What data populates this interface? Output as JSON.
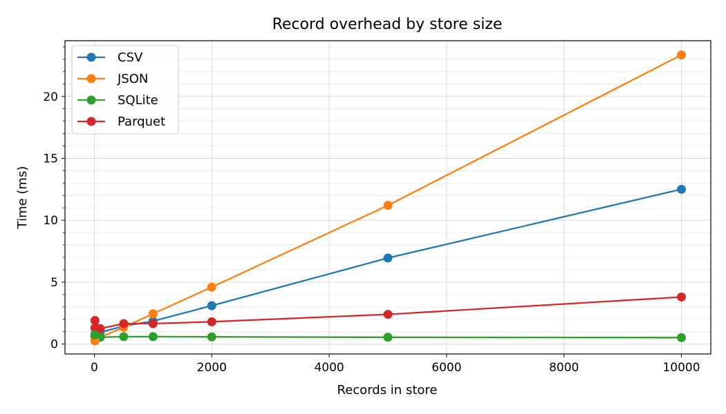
{
  "chart_data": {
    "type": "line",
    "title": "Record overhead by store size",
    "xlabel": "Records in store",
    "ylabel": "Time (ms)",
    "xlim": [
      -500,
      10500
    ],
    "ylim": [
      -0.8,
      24.5
    ],
    "xticks": [
      0,
      2000,
      4000,
      6000,
      8000,
      10000
    ],
    "yticks": [
      0,
      5,
      10,
      15,
      20
    ],
    "y_minor_step": 1,
    "grid": true,
    "legend_position": "upper-left",
    "x": [
      10,
      100,
      500,
      1000,
      2000,
      5000,
      10000
    ],
    "series": [
      {
        "name": "CSV",
        "color": "#1f77b4",
        "values": [
          0.8,
          0.95,
          1.45,
          1.85,
          3.1,
          6.95,
          12.5
        ]
      },
      {
        "name": "JSON",
        "color": "#ff7f0e",
        "values": [
          0.3,
          0.55,
          1.35,
          2.45,
          4.6,
          11.2,
          23.35
        ]
      },
      {
        "name": "SQLite",
        "color": "#2ca02c",
        "values": [
          0.65,
          0.55,
          0.6,
          0.6,
          0.58,
          0.55,
          0.52
        ]
      },
      {
        "name": "Parquet",
        "color": "#d62728",
        "values": [
          1.9,
          1.25,
          1.65,
          1.65,
          1.8,
          2.4,
          3.8
        ]
      }
    ],
    "extra_points": [
      {
        "series": "JSON",
        "x": 10,
        "y": 0.25
      },
      {
        "series": "Parquet",
        "x": 10,
        "y": 1.3
      },
      {
        "series": "SQLite",
        "x": 10,
        "y": 0.75
      }
    ]
  }
}
